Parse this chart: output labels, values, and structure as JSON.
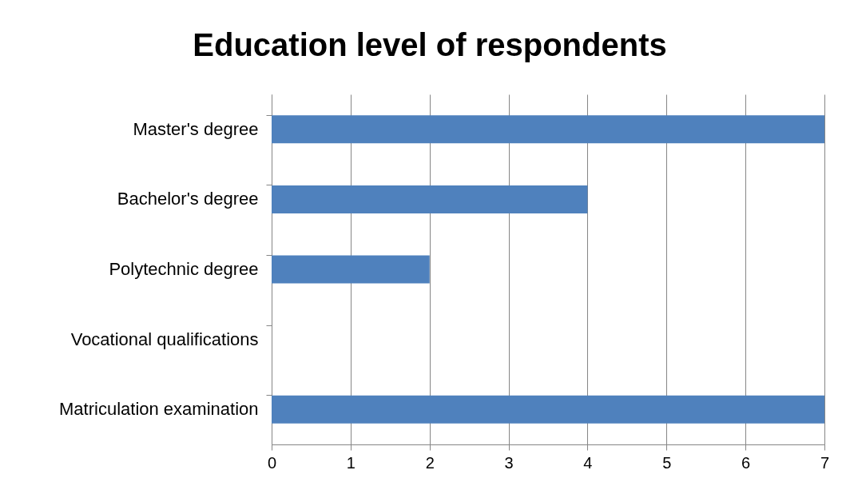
{
  "chart_data": {
    "type": "bar",
    "orientation": "horizontal",
    "title": "Education level of respondents",
    "categories": [
      "Master's degree",
      "Bachelor's degree",
      "Polytechnic degree",
      "Vocational qualifications",
      "Matriculation examination"
    ],
    "values": [
      7,
      4,
      2,
      0,
      7
    ],
    "color": "#4f81bd",
    "xlim": [
      0,
      7
    ],
    "xticks": [
      0,
      1,
      2,
      3,
      4,
      5,
      6,
      7
    ],
    "grid": "x"
  }
}
